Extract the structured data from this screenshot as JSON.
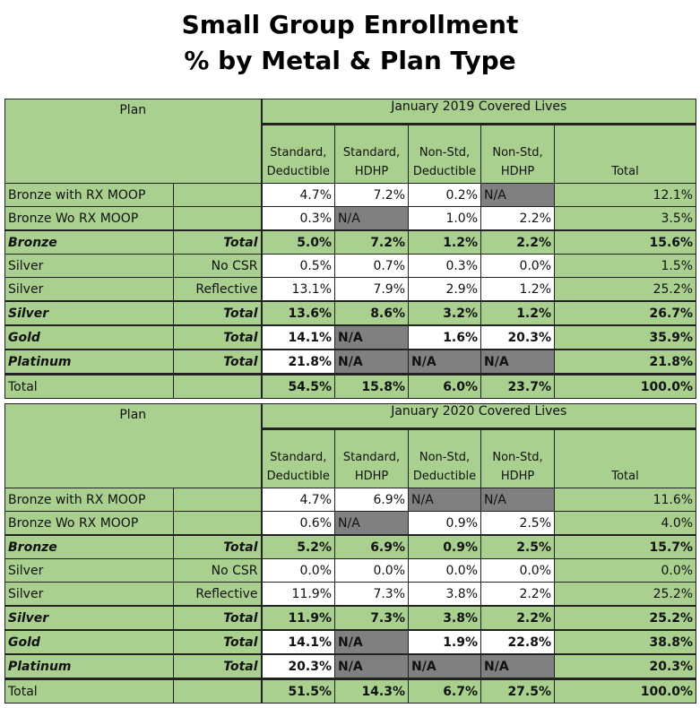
{
  "title": [
    "Small Group Enrollment",
    "% by Metal & Plan Type"
  ],
  "colors": {
    "header_green": "#a9d08e",
    "na_grey": "#808080",
    "value_white": "#ffffff"
  },
  "tables": [
    {
      "plan_header": "Plan",
      "period_header": "January 2019 Covered Lives",
      "columns": [
        "Standard, Deductible",
        "Standard, HDHP",
        "Non-Std, Deductible",
        "Non-Std, HDHP",
        "Total"
      ],
      "rows": [
        {
          "plan": "Bronze with RX MOOP",
          "sub": "",
          "type": "detail",
          "values": [
            "4.7%",
            "7.2%",
            "0.2%",
            "N/A",
            "12.1%"
          ]
        },
        {
          "plan": "Bronze Wo RX MOOP",
          "sub": "",
          "type": "detail",
          "values": [
            "0.3%",
            "N/A",
            "1.0%",
            "2.2%",
            "3.5%"
          ]
        },
        {
          "plan": "Bronze",
          "sub": "Total",
          "type": "subtotal",
          "values": [
            "5.0%",
            "7.2%",
            "1.2%",
            "2.2%",
            "15.6%"
          ]
        },
        {
          "plan": "Silver",
          "sub": "No CSR",
          "type": "detail",
          "values": [
            "0.5%",
            "0.7%",
            "0.3%",
            "0.0%",
            "1.5%"
          ]
        },
        {
          "plan": "Silver",
          "sub": "Reflective",
          "type": "detail",
          "values": [
            "13.1%",
            "7.9%",
            "2.9%",
            "1.2%",
            "25.2%"
          ]
        },
        {
          "plan": "Silver",
          "sub": "Total",
          "type": "subtotal",
          "values": [
            "13.6%",
            "8.6%",
            "3.2%",
            "1.2%",
            "26.7%"
          ]
        },
        {
          "plan": "Gold",
          "sub": "Total",
          "type": "metal",
          "values": [
            "14.1%",
            "N/A",
            "1.6%",
            "20.3%",
            "35.9%"
          ]
        },
        {
          "plan": "Platinum",
          "sub": "Total",
          "type": "metal",
          "values": [
            "21.8%",
            "N/A",
            "N/A",
            "N/A",
            "21.8%"
          ]
        },
        {
          "plan": "Total",
          "sub": "",
          "type": "grand",
          "values": [
            "54.5%",
            "15.8%",
            "6.0%",
            "23.7%",
            "100.0%"
          ]
        }
      ]
    },
    {
      "plan_header": "Plan",
      "period_header": "January 2020 Covered Lives",
      "columns": [
        "Standard, Deductible",
        "Standard, HDHP",
        "Non-Std, Deductible",
        "Non-Std, HDHP",
        "Total"
      ],
      "rows": [
        {
          "plan": "Bronze with RX MOOP",
          "sub": "",
          "type": "detail",
          "values": [
            "4.7%",
            "6.9%",
            "N/A",
            "N/A",
            "11.6%"
          ]
        },
        {
          "plan": "Bronze Wo RX MOOP",
          "sub": "",
          "type": "detail",
          "values": [
            "0.6%",
            "N/A",
            "0.9%",
            "2.5%",
            "4.0%"
          ]
        },
        {
          "plan": "Bronze",
          "sub": "Total",
          "type": "subtotal",
          "values": [
            "5.2%",
            "6.9%",
            "0.9%",
            "2.5%",
            "15.7%"
          ]
        },
        {
          "plan": "Silver",
          "sub": "No CSR",
          "type": "detail",
          "values": [
            "0.0%",
            "0.0%",
            "0.0%",
            "0.0%",
            "0.0%"
          ]
        },
        {
          "plan": "Silver",
          "sub": "Reflective",
          "type": "detail",
          "values": [
            "11.9%",
            "7.3%",
            "3.8%",
            "2.2%",
            "25.2%"
          ]
        },
        {
          "plan": "Silver",
          "sub": "Total",
          "type": "subtotal",
          "values": [
            "11.9%",
            "7.3%",
            "3.8%",
            "2.2%",
            "25.2%"
          ]
        },
        {
          "plan": "Gold",
          "sub": "Total",
          "type": "metal",
          "values": [
            "14.1%",
            "N/A",
            "1.9%",
            "22.8%",
            "38.8%"
          ]
        },
        {
          "plan": "Platinum",
          "sub": "Total",
          "type": "metal",
          "values": [
            "20.3%",
            "N/A",
            "N/A",
            "N/A",
            "20.3%"
          ]
        },
        {
          "plan": "Total",
          "sub": "",
          "type": "grand",
          "values": [
            "51.5%",
            "14.3%",
            "6.7%",
            "27.5%",
            "100.0%"
          ]
        }
      ]
    }
  ]
}
